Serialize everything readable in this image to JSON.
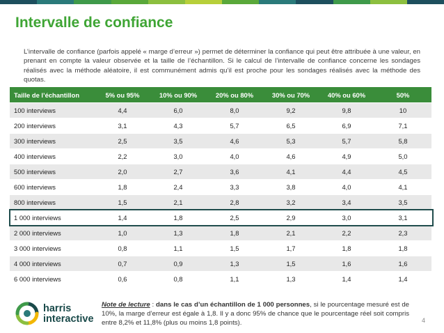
{
  "colors": {
    "accent": "#3fa535",
    "table_header_bg": "#3a8d3a",
    "highlight_border": "#1f4c4c",
    "top_bar": [
      "#1d4f5e",
      "#2a7a7a",
      "#3f9a4a",
      "#5aa83a",
      "#8cbf3f",
      "#b7cf3a",
      "#5aa83a",
      "#2a7a7a",
      "#1d4f5e",
      "#3f9a4a",
      "#8cbf3f",
      "#1d4f5e"
    ]
  },
  "title": "Intervalle de confiance",
  "intro": "L’intervalle de confiance (parfois appelé « marge d’erreur ») permet de déterminer la confiance qui peut être attribuée à une valeur, en prenant en compte la valeur observée et la taille de l’échantillon. Si le calcul de l’intervalle de confiance concerne les sondages réalisés avec la méthode aléatoire, il est communément admis qu’il est proche pour les sondages réalisés avec la méthode des quotas.",
  "table": {
    "headers": [
      "Taille de l’échantillon",
      "5% ou 95%",
      "10% ou 90%",
      "20% ou 80%",
      "30% ou 70%",
      "40% ou 60%",
      "50%"
    ],
    "rows": [
      [
        "100 interviews",
        "4,4",
        "6,0",
        "8,0",
        "9,2",
        "9,8",
        "10"
      ],
      [
        "200 interviews",
        "3,1",
        "4,3",
        "5,7",
        "6,5",
        "6,9",
        "7,1"
      ],
      [
        "300 interviews",
        "2,5",
        "3,5",
        "4,6",
        "5,3",
        "5,7",
        "5,8"
      ],
      [
        "400 interviews",
        "2,2",
        "3,0",
        "4,0",
        "4,6",
        "4,9",
        "5,0"
      ],
      [
        "500 interviews",
        "2,0",
        "2,7",
        "3,6",
        "4,1",
        "4,4",
        "4,5"
      ],
      [
        "600 interviews",
        "1,8",
        "2,4",
        "3,3",
        "3,8",
        "4,0",
        "4,1"
      ],
      [
        "800 interviews",
        "1,5",
        "2,1",
        "2,8",
        "3,2",
        "3,4",
        "3,5"
      ],
      [
        "1 000 interviews",
        "1,4",
        "1,8",
        "2,5",
        "2,9",
        "3,0",
        "3,1"
      ],
      [
        "2 000 interviews",
        "1,0",
        "1,3",
        "1,8",
        "2,1",
        "2,2",
        "2,3"
      ],
      [
        "3 000 interviews",
        "0,8",
        "1,1",
        "1,5",
        "1,7",
        "1,8",
        "1,8"
      ],
      [
        "4 000 interviews",
        "0,7",
        "0,9",
        "1,3",
        "1,5",
        "1,6",
        "1,6"
      ],
      [
        "6 000 interviews",
        "0,6",
        "0,8",
        "1,1",
        "1,3",
        "1,4",
        "1,4"
      ]
    ],
    "highlighted_row_label": "1 000 interviews"
  },
  "note": {
    "label": "Note de lecture",
    "sep": " : ",
    "bold_part": "dans le cas d’un échantillon de 1 000 personnes",
    "rest": ", si le pourcentage mesuré est de 10%, la marge d’erreur est égale à 1,8. Il y a donc 95% de chance que le pourcentage réel soit compris entre 8,2% et 11,8% (plus ou moins 1,8 points)."
  },
  "logo": {
    "line1": "harris",
    "line2": "interactive",
    "icon": "harris-logo-icon"
  },
  "page_number": "4"
}
